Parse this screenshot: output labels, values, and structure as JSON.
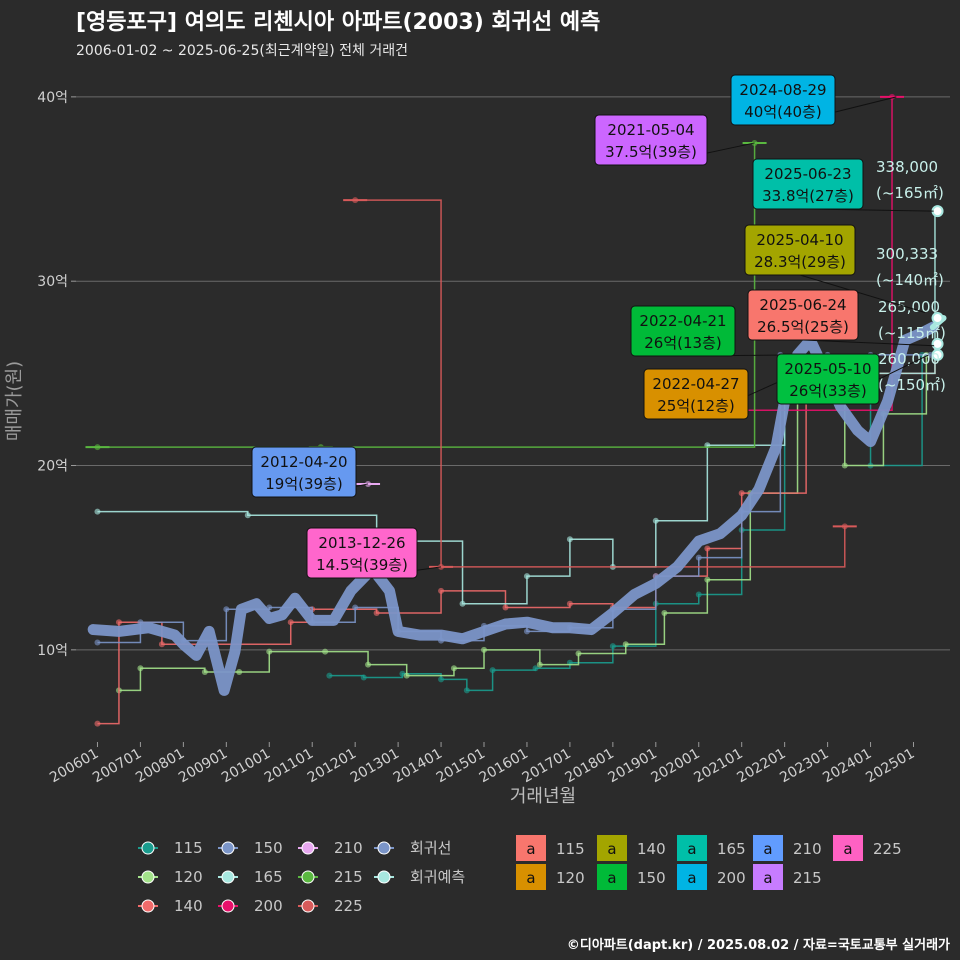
{
  "header": {
    "title": "[영등포구] 여의도 리첸시아 아파트(2003) 회귀선 예측",
    "subtitle": "2006-01-02 ~ 2025-06-25(최근계약일) 전체 거래건"
  },
  "footer": {
    "credit": "©디아파트(dapt.kr) / 2025.08.02 / 자료=국토교통부 실거래가"
  },
  "chart_data": {
    "type": "scatter",
    "xlabel": "거래년월",
    "ylabel": "매매가(원)",
    "x_tick_labels": [
      "200601",
      "200701",
      "200801",
      "200901",
      "201001",
      "201101",
      "201201",
      "201301",
      "201401",
      "201501",
      "201601",
      "201701",
      "201801",
      "201901",
      "202001",
      "202101",
      "202201",
      "202301",
      "202401",
      "202501"
    ],
    "x_range": [
      2005.5,
      2025.85
    ],
    "ylim": [
      5,
      42
    ],
    "y_ticks": [
      10,
      20,
      30,
      40
    ],
    "y_tick_labels": [
      "10억",
      "20억",
      "30억",
      "40억"
    ],
    "grid": "horizontal",
    "legend_position": "bottom",
    "colors": {
      "115": "#1a9c8e",
      "120": "#a3e28a",
      "140": "#f06a6a",
      "150": "#7b95c8",
      "165": "#a8e8e0",
      "200": "#e8106a",
      "210": "#e8a8f0",
      "215": "#5ab840",
      "225": "#d85a5a",
      "regression": "#7b95c8",
      "forecast": "#a8e8e0"
    },
    "series": [
      {
        "name": "115",
        "points": [
          [
            2011.4,
            8.6
          ],
          [
            2012.2,
            8.5
          ],
          [
            2013.1,
            8.7
          ],
          [
            2014.0,
            8.4
          ],
          [
            2014.6,
            7.8
          ],
          [
            2015.2,
            8.9
          ],
          [
            2016.2,
            9.0
          ],
          [
            2017.0,
            9.3
          ],
          [
            2018.0,
            10.2
          ],
          [
            2019.0,
            12.5
          ],
          [
            2020.0,
            13.0
          ],
          [
            2021.0,
            16.5
          ],
          [
            2022.0,
            24.0
          ],
          [
            2023.0,
            23.5
          ],
          [
            2024.0,
            20.0
          ],
          [
            2025.2,
            26.0
          ]
        ]
      },
      {
        "name": "120",
        "points": [
          [
            2006.5,
            7.8
          ],
          [
            2007.0,
            9.0
          ],
          [
            2008.5,
            8.8
          ],
          [
            2009.3,
            8.8
          ],
          [
            2010.0,
            9.9
          ],
          [
            2011.3,
            9.9
          ],
          [
            2012.3,
            9.2
          ],
          [
            2013.2,
            8.6
          ],
          [
            2014.3,
            9.0
          ],
          [
            2015.0,
            10.0
          ],
          [
            2016.3,
            9.2
          ],
          [
            2017.2,
            9.8
          ],
          [
            2018.3,
            10.3
          ],
          [
            2019.2,
            12.0
          ],
          [
            2020.2,
            13.8
          ],
          [
            2021.2,
            18.5
          ],
          [
            2022.3,
            25.0
          ],
          [
            2023.4,
            20.0
          ],
          [
            2024.3,
            22.8
          ],
          [
            2025.3,
            26.0
          ]
        ]
      },
      {
        "name": "140",
        "points": [
          [
            2006.0,
            6.0
          ],
          [
            2006.5,
            11.5
          ],
          [
            2007.5,
            10.3
          ],
          [
            2010.5,
            11.5
          ],
          [
            2011.0,
            12.2
          ],
          [
            2012.5,
            12.0
          ],
          [
            2014.0,
            13.2
          ],
          [
            2015.5,
            12.3
          ],
          [
            2017.0,
            12.5
          ],
          [
            2018.0,
            12.3
          ],
          [
            2019.0,
            14.0
          ],
          [
            2020.2,
            15.5
          ],
          [
            2021.0,
            18.5
          ],
          [
            2022.5,
            25.0
          ],
          [
            2025.5,
            26.5
          ]
        ]
      },
      {
        "name": "150",
        "points": [
          [
            2006.0,
            10.4
          ],
          [
            2007.0,
            11.5
          ],
          [
            2008.0,
            10.5
          ],
          [
            2009.0,
            12.2
          ],
          [
            2010.0,
            12.3
          ],
          [
            2011.0,
            11.5
          ],
          [
            2012.0,
            12.3
          ],
          [
            2013.0,
            11.0
          ],
          [
            2014.0,
            10.5
          ],
          [
            2015.0,
            11.3
          ],
          [
            2016.0,
            11.0
          ],
          [
            2017.0,
            11.2
          ],
          [
            2018.0,
            12.2
          ],
          [
            2019.0,
            14.0
          ],
          [
            2020.0,
            15.0
          ],
          [
            2021.0,
            17.5
          ],
          [
            2021.9,
            26.0
          ],
          [
            2023.0,
            26.0
          ],
          [
            2024.0,
            26.0
          ],
          [
            2025.4,
            26.0
          ]
        ]
      },
      {
        "name": "165",
        "points": [
          [
            2006.0,
            17.5
          ],
          [
            2009.5,
            17.3
          ],
          [
            2012.5,
            15.9
          ],
          [
            2014.5,
            12.5
          ],
          [
            2016.0,
            14.0
          ],
          [
            2017.0,
            16.0
          ],
          [
            2018.0,
            14.5
          ],
          [
            2019.0,
            17.0
          ],
          [
            2020.2,
            21.1
          ],
          [
            2022.0,
            25.0
          ],
          [
            2025.5,
            33.8
          ]
        ]
      },
      {
        "name": "200",
        "points": [
          [
            2019.2,
            23.0
          ],
          [
            2024.5,
            40.0
          ]
        ]
      },
      {
        "name": "210",
        "points": [
          [
            2012.3,
            19.0
          ]
        ]
      },
      {
        "name": "215",
        "points": [
          [
            2006.0,
            21.0
          ],
          [
            2011.2,
            21.0
          ],
          [
            2021.3,
            37.5
          ]
        ]
      },
      {
        "name": "225",
        "points": [
          [
            2012.0,
            34.4
          ],
          [
            2014.0,
            14.5
          ],
          [
            2023.4,
            16.7
          ]
        ]
      },
      {
        "name": "회귀선",
        "points": [
          [
            2005.9,
            11.1
          ],
          [
            2006.5,
            11.0
          ],
          [
            2007.2,
            11.2
          ],
          [
            2007.8,
            10.8
          ],
          [
            2008.0,
            10.3
          ],
          [
            2008.3,
            9.7
          ],
          [
            2008.6,
            11.0
          ],
          [
            2008.95,
            7.8
          ],
          [
            2009.2,
            9.9
          ],
          [
            2009.35,
            12.2
          ],
          [
            2009.7,
            12.5
          ],
          [
            2010.0,
            11.7
          ],
          [
            2010.3,
            11.9
          ],
          [
            2010.6,
            12.8
          ],
          [
            2011.0,
            11.6
          ],
          [
            2011.5,
            11.6
          ],
          [
            2011.9,
            13.2
          ],
          [
            2012.4,
            14.4
          ],
          [
            2012.8,
            13.2
          ],
          [
            2013.0,
            11.0
          ],
          [
            2013.5,
            10.8
          ],
          [
            2014.0,
            10.8
          ],
          [
            2014.5,
            10.6
          ],
          [
            2015.0,
            11.0
          ],
          [
            2015.5,
            11.4
          ],
          [
            2016.0,
            11.5
          ],
          [
            2016.6,
            11.2
          ],
          [
            2017.0,
            11.2
          ],
          [
            2017.5,
            11.1
          ],
          [
            2018.0,
            12.0
          ],
          [
            2018.5,
            13.0
          ],
          [
            2019.0,
            13.6
          ],
          [
            2019.5,
            14.5
          ],
          [
            2020.0,
            15.9
          ],
          [
            2020.5,
            16.3
          ],
          [
            2021.0,
            17.3
          ],
          [
            2021.4,
            18.7
          ],
          [
            2021.8,
            21.0
          ],
          [
            2022.0,
            23.5
          ],
          [
            2022.3,
            26.0
          ],
          [
            2022.6,
            26.8
          ],
          [
            2023.0,
            24.8
          ],
          [
            2023.3,
            23.2
          ],
          [
            2023.7,
            21.9
          ],
          [
            2024.0,
            21.3
          ],
          [
            2024.4,
            23.5
          ],
          [
            2024.8,
            26.8
          ],
          [
            2025.2,
            27.2
          ],
          [
            2025.45,
            27.5
          ]
        ]
      },
      {
        "name": "회귀예측",
        "points": [
          [
            2025.45,
            27.5
          ],
          [
            2025.6,
            27.8
          ],
          [
            2025.7,
            28.0
          ]
        ]
      }
    ],
    "annotations": [
      {
        "date": "2012-04-20",
        "label": "19억(39층)",
        "color": "#6699f0",
        "x": 2012.3,
        "y": 19.0
      },
      {
        "date": "2013-12-26",
        "label": "14.5억(39층)",
        "color": "#ff66cc",
        "x": 2014.0,
        "y": 14.5
      },
      {
        "date": "2021-05-04",
        "label": "37.5억(39층)",
        "color": "#cc66ff",
        "x": 2021.3,
        "y": 37.5
      },
      {
        "date": "2024-08-29",
        "label": "40억(40층)",
        "color": "#00b4e4",
        "x": 2024.6,
        "y": 40.0
      },
      {
        "date": "2025-06-23",
        "label": "33.8억(27층)",
        "color": "#00bfa8",
        "x": 2025.47,
        "y": 33.8
      },
      {
        "date": "2025-04-10",
        "label": "28.3억(29층)",
        "color": "#a3a500",
        "x": 2025.27,
        "y": 28.3
      },
      {
        "date": "2025-06-24",
        "label": "26.5억(25층)",
        "color": "#f8766d",
        "x": 2025.48,
        "y": 26.5
      },
      {
        "date": "2022-04-21",
        "label": "26억(13층)",
        "color": "#00ba38",
        "x": 2022.3,
        "y": 26.0
      },
      {
        "date": "2022-04-27",
        "label": "25억(12층)",
        "color": "#d89000",
        "x": 2022.3,
        "y": 25.0
      },
      {
        "date": "2025-05-10",
        "label": "26억(33층)",
        "color": "#00c040",
        "x": 2025.35,
        "y": 26.0
      }
    ],
    "forecast_labels": [
      {
        "price": "338,000",
        "area": "(~165㎡)",
        "x": 2025.7,
        "y": 33.8
      },
      {
        "price": "300,333",
        "area": "(~140㎡)",
        "x": 2025.7,
        "y": 28.0
      },
      {
        "price": "265,000",
        "area": "(~115㎡)",
        "x": 2025.7,
        "y": 26.6
      },
      {
        "price": "260,000",
        "area": "(~150㎡)",
        "x": 2025.7,
        "y": 26.0
      }
    ],
    "legend_lines": [
      {
        "name": "115",
        "color": "#1a9c8e"
      },
      {
        "name": "120",
        "color": "#a3e28a"
      },
      {
        "name": "140",
        "color": "#f06a6a"
      },
      {
        "name": "150",
        "color": "#7b95c8"
      },
      {
        "name": "165",
        "color": "#a8e8e0"
      },
      {
        "name": "210",
        "color": "#e8a8f0"
      },
      {
        "name": "200",
        "color": "#e8106a"
      },
      {
        "name": "215",
        "color": "#5ab840"
      },
      {
        "name": "225",
        "color": "#d85a5a"
      },
      {
        "name": "회귀선",
        "color": "#7b95c8"
      },
      {
        "name": "회귀예측",
        "color": "#a8e8e0"
      }
    ],
    "legend_labels": [
      {
        "name": "115",
        "color": "#f8766d"
      },
      {
        "name": "120",
        "color": "#d89000"
      },
      {
        "name": "140",
        "color": "#a3a500"
      },
      {
        "name": "150",
        "color": "#00ba38"
      },
      {
        "name": "165",
        "color": "#00bfa8"
      },
      {
        "name": "200",
        "color": "#00b4e4"
      },
      {
        "name": "210",
        "color": "#619cff"
      },
      {
        "name": "215",
        "color": "#c77cff"
      },
      {
        "name": "225",
        "color": "#ff61c3"
      }
    ],
    "legend_label_glyph": "a"
  }
}
